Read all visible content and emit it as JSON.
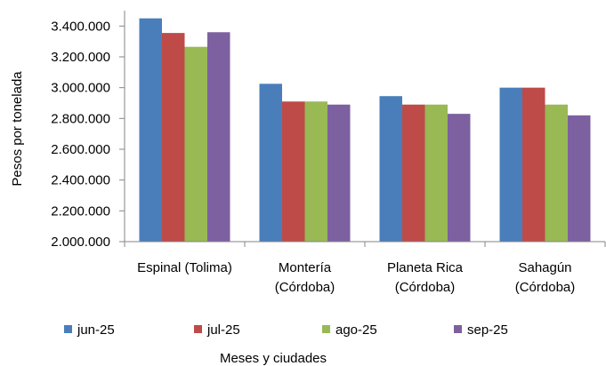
{
  "chart_data": {
    "type": "bar",
    "title": "",
    "xlabel": "Meses y ciudades",
    "ylabel": "Pesos por tonelada",
    "ylim": [
      2000000,
      3500000
    ],
    "yticks": [
      "2.000.000",
      "2.200.000",
      "2.400.000",
      "2.600.000",
      "2.800.000",
      "3.000.000",
      "3.200.000",
      "3.400.000"
    ],
    "ytick_values": [
      2000000,
      2200000,
      2400000,
      2600000,
      2800000,
      3000000,
      3200000,
      3400000
    ],
    "grid": false,
    "legend_position": "bottom",
    "categories": [
      [
        "Espinal (Tolima)"
      ],
      [
        "Montería",
        "(Córdoba)"
      ],
      [
        "Planeta Rica",
        "(Córdoba)"
      ],
      [
        "Sahagún",
        "(Córdoba)"
      ]
    ],
    "series": [
      {
        "name": "jun-25",
        "color": "#4a7ebb",
        "values": [
          3450000,
          3025000,
          2945000,
          3000000
        ]
      },
      {
        "name": "jul-25",
        "color": "#be4b48",
        "values": [
          3355000,
          2910000,
          2890000,
          3000000
        ]
      },
      {
        "name": "ago-25",
        "color": "#98b954",
        "values": [
          3265000,
          2910000,
          2890000,
          2890000
        ]
      },
      {
        "name": "sep-25",
        "color": "#7d60a0",
        "values": [
          3360000,
          2890000,
          2830000,
          2820000
        ]
      }
    ]
  }
}
